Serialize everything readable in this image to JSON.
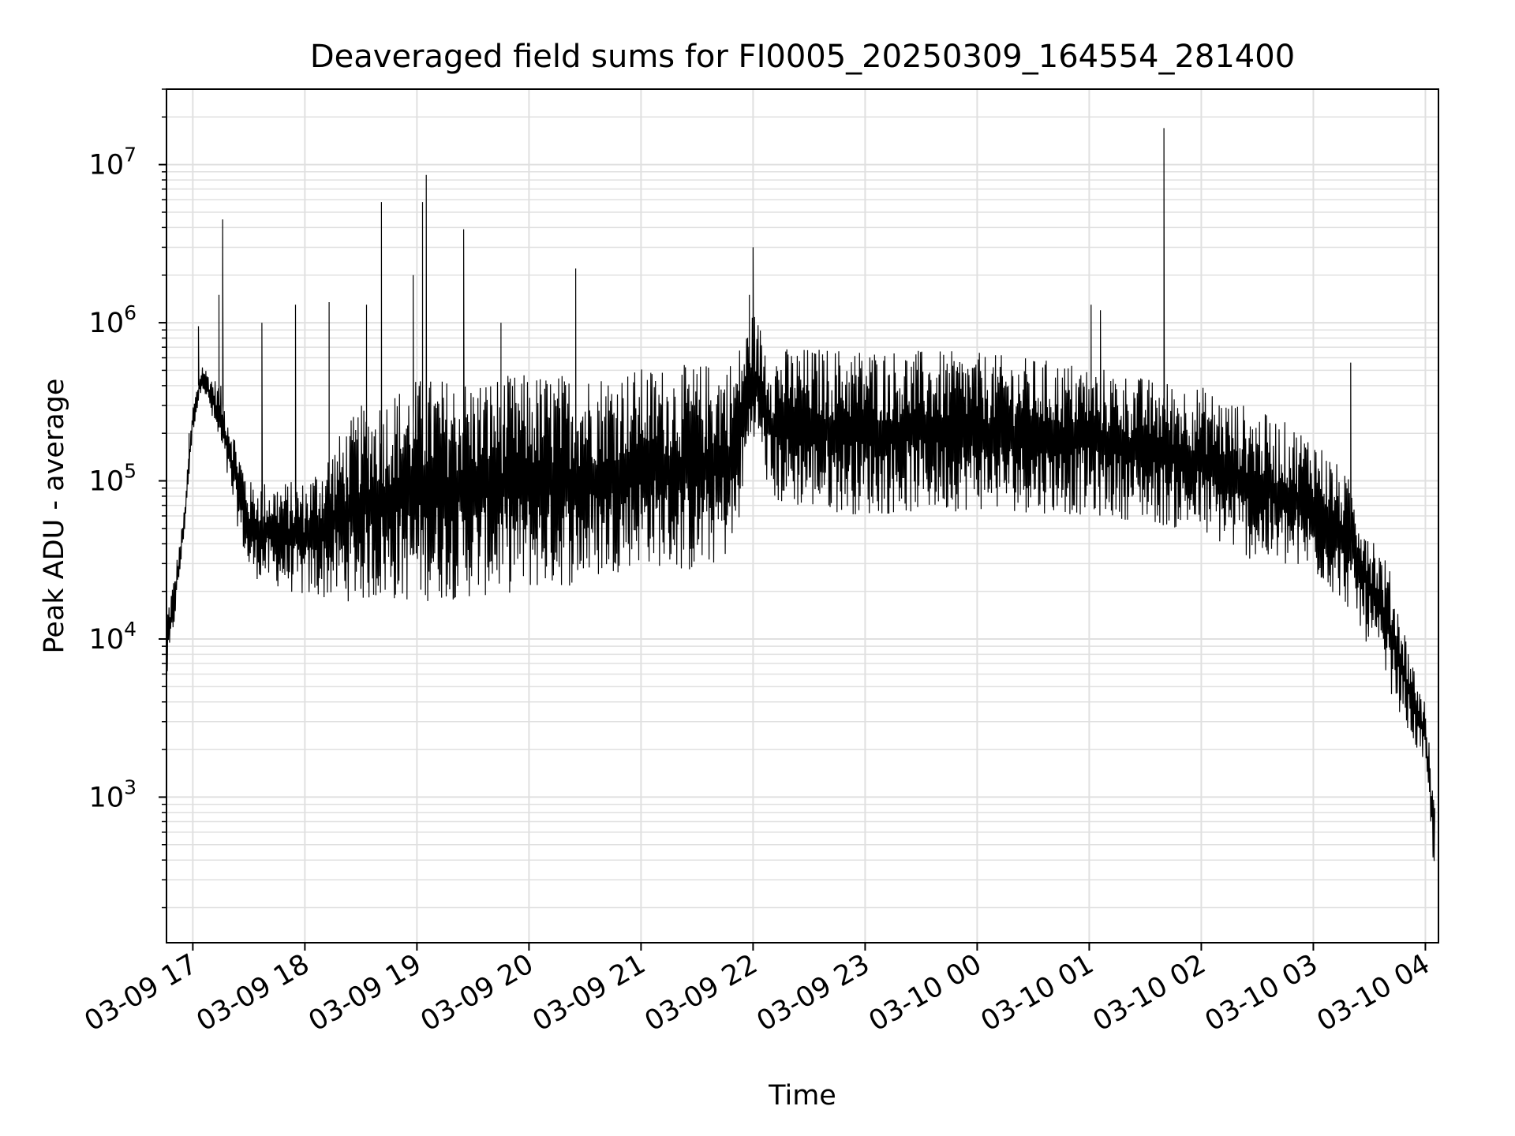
{
  "chart_data": {
    "type": "line",
    "title": "Deaveraged field sums for FI0005_20250309_164554_281400",
    "xlabel": "Time",
    "ylabel": "Peak ADU - average",
    "yscale": "log",
    "ylim": [
      120,
      30000000
    ],
    "xlim": [
      "2025-03-09 16:45:54",
      "2025-03-10 04:07:00"
    ],
    "grid": true,
    "grid_minor": true,
    "line_color": "#000000",
    "grid_color": "#e0e0e0",
    "x_ticks": [
      {
        "value": "2025-03-09 17:00",
        "label": "03-09 17"
      },
      {
        "value": "2025-03-09 18:00",
        "label": "03-09 18"
      },
      {
        "value": "2025-03-09 19:00",
        "label": "03-09 19"
      },
      {
        "value": "2025-03-09 20:00",
        "label": "03-09 20"
      },
      {
        "value": "2025-03-09 21:00",
        "label": "03-09 21"
      },
      {
        "value": "2025-03-09 22:00",
        "label": "03-09 22"
      },
      {
        "value": "2025-03-09 23:00",
        "label": "03-09 23"
      },
      {
        "value": "2025-03-10 00:00",
        "label": "03-10 00"
      },
      {
        "value": "2025-03-10 01:00",
        "label": "03-10 01"
      },
      {
        "value": "2025-03-10 02:00",
        "label": "03-10 02"
      },
      {
        "value": "2025-03-10 03:00",
        "label": "03-10 03"
      },
      {
        "value": "2025-03-10 04:00",
        "label": "03-10 04"
      }
    ],
    "y_ticks": [
      {
        "value": 1000,
        "base": "10",
        "exp": "3"
      },
      {
        "value": 10000,
        "base": "10",
        "exp": "4"
      },
      {
        "value": 100000,
        "base": "10",
        "exp": "5"
      },
      {
        "value": 1000000,
        "base": "10",
        "exp": "6"
      },
      {
        "value": 10000000,
        "base": "10",
        "exp": "7"
      }
    ],
    "envelope": [
      {
        "x": "2025-03-09 16:46",
        "low": 5000,
        "high": 16000
      },
      {
        "x": "2025-03-09 16:50",
        "low": 12000,
        "high": 25000
      },
      {
        "x": "2025-03-09 16:55",
        "low": 40000,
        "high": 60000
      },
      {
        "x": "2025-03-09 17:00",
        "low": 200000,
        "high": 300000
      },
      {
        "x": "2025-03-09 17:05",
        "low": 400000,
        "high": 550000
      },
      {
        "x": "2025-03-09 17:15",
        "low": 150000,
        "high": 400000
      },
      {
        "x": "2025-03-09 17:30",
        "low": 25000,
        "high": 100000
      },
      {
        "x": "2025-03-09 18:00",
        "low": 18000,
        "high": 100000
      },
      {
        "x": "2025-03-09 18:30",
        "low": 17000,
        "high": 300000
      },
      {
        "x": "2025-03-09 19:00",
        "low": 17000,
        "high": 450000
      },
      {
        "x": "2025-03-09 19:30",
        "low": 18000,
        "high": 450000
      },
      {
        "x": "2025-03-09 20:00",
        "low": 20000,
        "high": 480000
      },
      {
        "x": "2025-03-09 20:30",
        "low": 22000,
        "high": 480000
      },
      {
        "x": "2025-03-09 21:00",
        "low": 30000,
        "high": 520000
      },
      {
        "x": "2025-03-09 21:30",
        "low": 25000,
        "high": 550000
      },
      {
        "x": "2025-03-09 21:50",
        "low": 35000,
        "high": 600000
      },
      {
        "x": "2025-03-09 22:00",
        "low": 200000,
        "high": 1200000
      },
      {
        "x": "2025-03-09 22:10",
        "low": 70000,
        "high": 700000
      },
      {
        "x": "2025-03-09 23:00",
        "low": 60000,
        "high": 700000
      },
      {
        "x": "2025-03-10 00:00",
        "low": 65000,
        "high": 650000
      },
      {
        "x": "2025-03-10 01:00",
        "low": 60000,
        "high": 550000
      },
      {
        "x": "2025-03-10 01:30",
        "low": 55000,
        "high": 450000
      },
      {
        "x": "2025-03-10 02:00",
        "low": 45000,
        "high": 400000
      },
      {
        "x": "2025-03-10 02:30",
        "low": 30000,
        "high": 280000
      },
      {
        "x": "2025-03-10 03:00",
        "low": 25000,
        "high": 200000
      },
      {
        "x": "2025-03-10 03:20",
        "low": 15000,
        "high": 100000
      },
      {
        "x": "2025-03-10 03:40",
        "low": 5000,
        "high": 30000
      },
      {
        "x": "2025-03-10 03:55",
        "low": 2000,
        "high": 6000
      },
      {
        "x": "2025-03-10 04:00",
        "low": 1500,
        "high": 4000
      },
      {
        "x": "2025-03-10 04:05",
        "low": 300,
        "high": 900
      }
    ],
    "spikes": [
      {
        "x": "2025-03-09 16:58",
        "y": 200000
      },
      {
        "x": "2025-03-09 17:03",
        "y": 950000
      },
      {
        "x": "2025-03-09 17:14",
        "y": 1500000
      },
      {
        "x": "2025-03-09 17:16",
        "y": 4500000
      },
      {
        "x": "2025-03-09 17:37",
        "y": 1000000
      },
      {
        "x": "2025-03-09 17:55",
        "y": 1300000
      },
      {
        "x": "2025-03-09 18:13",
        "y": 1350000
      },
      {
        "x": "2025-03-09 18:33",
        "y": 1300000
      },
      {
        "x": "2025-03-09 18:41",
        "y": 5800000
      },
      {
        "x": "2025-03-09 18:58",
        "y": 2000000
      },
      {
        "x": "2025-03-09 19:03",
        "y": 5800000
      },
      {
        "x": "2025-03-09 19:05",
        "y": 8600000
      },
      {
        "x": "2025-03-09 19:25",
        "y": 3900000
      },
      {
        "x": "2025-03-09 19:45",
        "y": 1000000
      },
      {
        "x": "2025-03-09 20:25",
        "y": 2200000
      },
      {
        "x": "2025-03-09 21:58",
        "y": 1500000
      },
      {
        "x": "2025-03-09 22:00",
        "y": 3000000
      },
      {
        "x": "2025-03-10 01:01",
        "y": 1300000
      },
      {
        "x": "2025-03-10 01:06",
        "y": 1200000
      },
      {
        "x": "2025-03-10 01:40",
        "y": 17000000
      },
      {
        "x": "2025-03-10 03:20",
        "y": 560000
      }
    ]
  }
}
